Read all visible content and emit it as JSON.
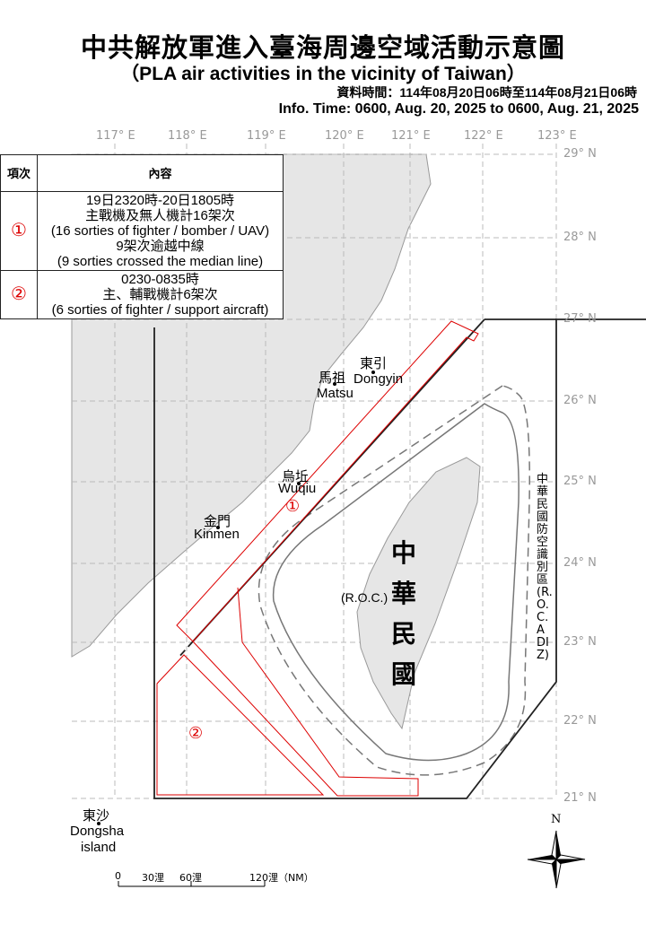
{
  "header": {
    "title": "中共解放軍進入臺海周邊空域活動示意圖",
    "subtitle": "（PLA air activities in the vicinity of Taiwan）",
    "time_zh": "資料時間：114年08月20日06時至114年08月21日06時",
    "time_en": "Info. Time: 0600, Aug. 20, 2025 to 0600, Aug. 21, 2025"
  },
  "axes": {
    "lon": [
      "117° E",
      "118° E",
      "119° E",
      "120° E",
      "121° E",
      "122° E",
      "123° E"
    ],
    "lat": [
      "29° N",
      "28° N",
      "27° N",
      "26° N",
      "25° N",
      "24° N",
      "23° N",
      "22° N",
      "21° N"
    ]
  },
  "table": {
    "headers": [
      "項次",
      "內容"
    ],
    "rows": [
      {
        "marker": "①",
        "lines": [
          "19日2320時-20日1805時",
          "主戰機及無人機計16架次",
          "(16 sorties of  fighter / bomber / UAV)",
          "9架次逾越中線",
          "(9 sorties crossed the median line)"
        ]
      },
      {
        "marker": "②",
        "lines": [
          "0230-0835時",
          "主、輔戰機計6架次",
          "(6 sorties of fighter / support aircraft)"
        ]
      }
    ]
  },
  "places": {
    "dongyin_zh": "東引",
    "dongyin_en": "Dongyin",
    "matsu_zh": "馬祖",
    "matsu_en": "Matsu",
    "wuqiu_zh": "烏坵",
    "wuqiu_en": "Wuqiu",
    "kinmen_zh": "金門",
    "kinmen_en": "Kinmen",
    "dongsha_zh": "東沙",
    "dongsha_en": "Dongsha",
    "dongsha_en2": "island",
    "roc_zh": [
      "中",
      "華",
      "民",
      "國"
    ],
    "roc_en": "(R.O.C.)",
    "adiz": "中華民國防空識別區(R.O.C. ADIZ)"
  },
  "markers": {
    "area1": "①",
    "area2": "②"
  },
  "scale": {
    "labels": [
      "0",
      "30浬",
      "60浬",
      "120浬（NM）"
    ]
  },
  "compass": {
    "north": "N"
  },
  "colors": {
    "activity": "#dd0000",
    "land": "#e6e6e6",
    "adiz": "#222222"
  }
}
